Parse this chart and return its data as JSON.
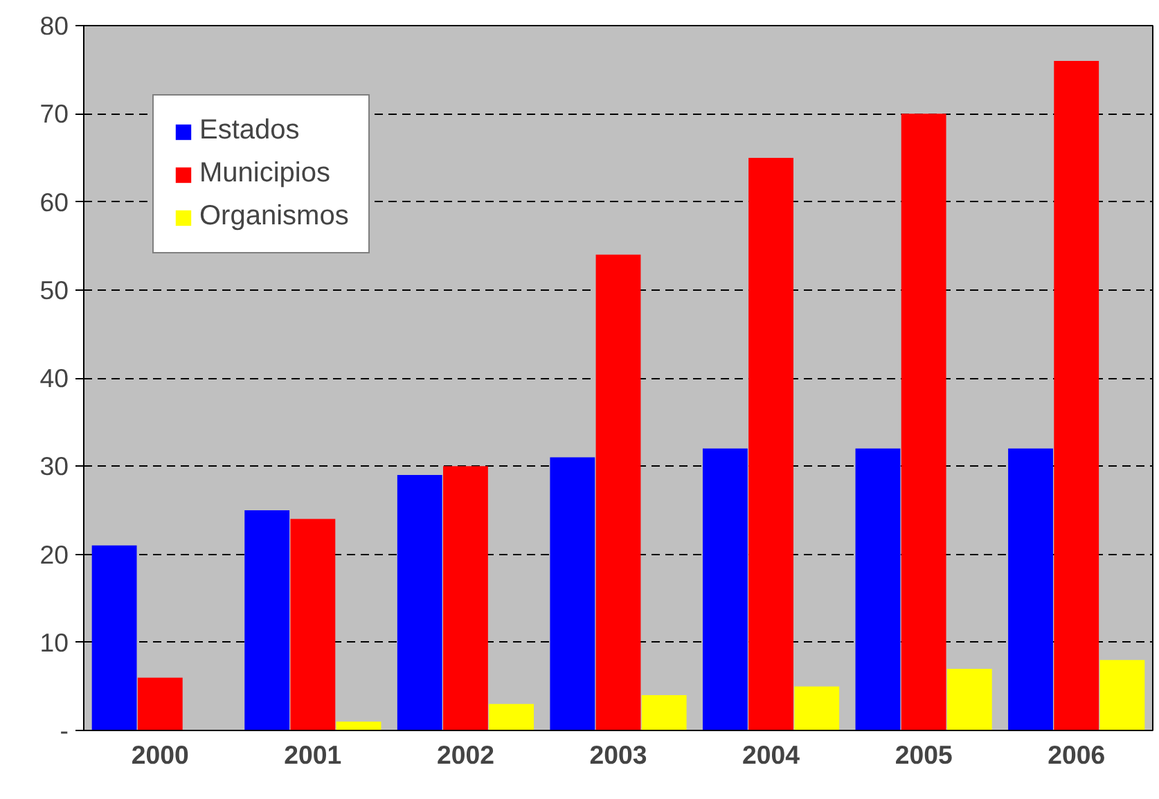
{
  "chart_data": {
    "type": "bar",
    "categories": [
      "2000",
      "2001",
      "2002",
      "2003",
      "2004",
      "2005",
      "2006"
    ],
    "series": [
      {
        "name": "Estados",
        "color": "#0000ff",
        "values": [
          21,
          25,
          29,
          31,
          32,
          32,
          32
        ]
      },
      {
        "name": "Municipios",
        "color": "#ff0000",
        "values": [
          6,
          24,
          30,
          54,
          65,
          70,
          76
        ]
      },
      {
        "name": "Organismos",
        "color": "#ffff00",
        "values": [
          0,
          1,
          3,
          4,
          5,
          7,
          8
        ]
      }
    ],
    "ylim": [
      0,
      80
    ],
    "yticks": [
      {
        "value": 0,
        "label": "-"
      },
      10,
      20,
      30,
      40,
      50,
      60,
      70,
      80
    ],
    "grid": "y",
    "legend": "top left"
  }
}
